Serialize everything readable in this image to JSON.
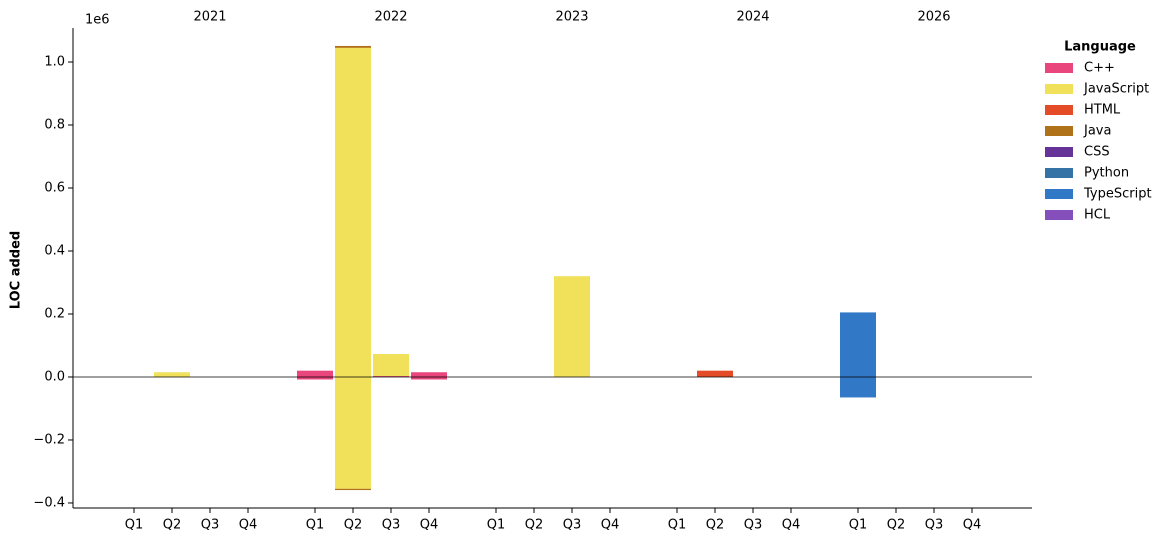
{
  "chart_data": {
    "type": "stacked_bar",
    "y_label": "LOC added",
    "y_offset_label": "1e6",
    "groups": [
      {
        "label": "2021",
        "categories": [
          "Q1",
          "Q2",
          "Q3",
          "Q4"
        ]
      },
      {
        "label": "2022",
        "categories": [
          "Q1",
          "Q2",
          "Q3",
          "Q4"
        ]
      },
      {
        "label": "2023",
        "categories": [
          "Q1",
          "Q2",
          "Q3",
          "Q4"
        ]
      },
      {
        "label": "2024",
        "categories": [
          "Q1",
          "Q2",
          "Q3",
          "Q4"
        ]
      },
      {
        "label": "2026",
        "categories": [
          "Q1",
          "Q2",
          "Q3",
          "Q4"
        ]
      }
    ],
    "legend_title": "Language",
    "legend_position": "outside-right",
    "ylim": [
      -0.416,
      1.108
    ],
    "yticks": [
      {
        "value": -0.4,
        "label": "−0.4"
      },
      {
        "value": -0.2,
        "label": "−0.2"
      },
      {
        "value": 0,
        "label": "0.0"
      },
      0.2,
      0.4,
      0.6,
      0.8,
      {
        "value": 1,
        "label": "1.0"
      }
    ],
    "series": [
      {
        "name": "C++",
        "color": "#e8467c",
        "values": [
          0,
          0,
          0,
          0,
          0.02,
          0,
          0.003,
          0.015,
          0,
          0,
          0,
          0,
          0,
          0,
          0,
          0,
          0,
          0,
          0,
          0
        ],
        "removed": [
          0,
          0,
          0,
          0,
          -0.008,
          0,
          0,
          -0.008,
          0,
          0,
          0,
          0,
          0,
          0,
          0,
          0,
          0,
          0,
          0,
          0
        ]
      },
      {
        "name": "JavaScript",
        "color": "#f1e05a",
        "values": [
          0,
          0.015,
          0,
          0,
          0,
          1.045,
          0.07,
          0,
          0,
          0,
          0.32,
          0,
          0,
          0,
          0,
          0,
          0,
          0,
          0,
          0
        ],
        "removed": [
          0,
          0,
          0,
          0,
          0,
          -0.355,
          0,
          0,
          0,
          0,
          0,
          0,
          0,
          0,
          0,
          0,
          0,
          0,
          0,
          0
        ]
      },
      {
        "name": "HTML",
        "color": "#e34c26",
        "values": [
          0,
          0,
          0,
          0,
          0,
          0,
          0,
          0,
          0,
          0,
          0,
          0,
          0,
          0.02,
          0,
          0,
          0,
          0,
          0,
          0
        ],
        "removed": [
          0,
          0,
          0,
          0,
          0,
          0,
          0,
          0,
          0,
          0,
          0,
          0,
          0,
          0,
          0,
          0,
          0,
          0,
          0,
          0
        ]
      },
      {
        "name": "Java",
        "color": "#b07219",
        "values": [
          0,
          0,
          0,
          0,
          0,
          0.006,
          0,
          0,
          0,
          0,
          0,
          0,
          0,
          0,
          0,
          0,
          0,
          0,
          0,
          0
        ],
        "removed": [
          0,
          0,
          0,
          0,
          0,
          -0.004,
          0,
          0,
          0,
          0,
          0,
          0,
          0,
          0,
          0,
          0,
          0,
          0,
          0,
          0
        ]
      },
      {
        "name": "CSS",
        "color": "#663399",
        "values": [
          0,
          0,
          0,
          0,
          0,
          0,
          0,
          0,
          0,
          0,
          0,
          0,
          0,
          0,
          0,
          0,
          0,
          0,
          0,
          0
        ],
        "removed": [
          0,
          0,
          0,
          0,
          0,
          0,
          0,
          0,
          0,
          0,
          0,
          0,
          0,
          0,
          0,
          0,
          0,
          0,
          0,
          0
        ]
      },
      {
        "name": "Python",
        "color": "#3572a5",
        "values": [
          0,
          0,
          0,
          0,
          0,
          0,
          0,
          0,
          0,
          0,
          0,
          0,
          0,
          0,
          0,
          0,
          0,
          0,
          0,
          0
        ],
        "removed": [
          0,
          0,
          0,
          0,
          0,
          0,
          0,
          0,
          0,
          0,
          0,
          0,
          0,
          0,
          0,
          0,
          0,
          0,
          0,
          0
        ]
      },
      {
        "name": "TypeScript",
        "color": "#3178c6",
        "values": [
          0,
          0,
          0,
          0,
          0,
          0,
          0,
          0,
          0,
          0,
          0,
          0,
          0,
          0,
          0,
          0,
          0.205,
          0,
          0,
          0
        ],
        "removed": [
          0,
          0,
          0,
          0,
          0,
          0,
          0,
          0,
          0,
          0,
          0,
          0,
          0,
          0,
          0,
          0,
          -0.065,
          0,
          0,
          0
        ]
      },
      {
        "name": "HCL",
        "color": "#844fba",
        "values": [
          0,
          0,
          0,
          0,
          0,
          0,
          0,
          0,
          0,
          0,
          0,
          0,
          0,
          0,
          0,
          0,
          0,
          0,
          0,
          0
        ],
        "removed": [
          0,
          0,
          0,
          0,
          0,
          0,
          0,
          0,
          0,
          0,
          0,
          0,
          0,
          0,
          0,
          0,
          0,
          0,
          0,
          0
        ]
      }
    ]
  }
}
